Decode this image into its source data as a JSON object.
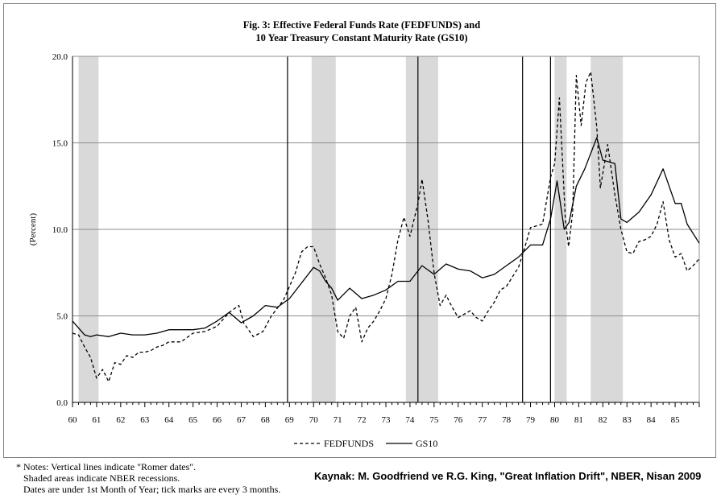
{
  "chart_data": {
    "type": "line",
    "title_line1": "Fig. 3: Effective Federal Funds Rate (FEDFUNDS) and",
    "title_line2": "10 Year Treasury Constant Maturity Rate (GS10)",
    "ylabel": "(Percent)",
    "xlabel": "",
    "ylim": [
      0,
      20
    ],
    "xlim": [
      1960,
      1986
    ],
    "y_ticks": [
      "0.0",
      "5.0",
      "10.0",
      "15.0",
      "20.0"
    ],
    "x_ticks": [
      "60",
      "61",
      "62",
      "63",
      "64",
      "65",
      "66",
      "67",
      "68",
      "69",
      "70",
      "71",
      "72",
      "73",
      "74",
      "75",
      "76",
      "77",
      "78",
      "79",
      "80",
      "81",
      "82",
      "83",
      "84",
      "85"
    ],
    "grid": "horizontal",
    "legend": "bottom-center",
    "recessions": [
      [
        1960.25,
        1961.08
      ],
      [
        1969.92,
        1970.92
      ],
      [
        1973.83,
        1975.17
      ],
      [
        1980.0,
        1980.5
      ],
      [
        1981.5,
        1982.83
      ]
    ],
    "romer_dates": [
      1968.92,
      1974.33,
      1978.67,
      1979.83
    ],
    "series": [
      {
        "name": "FEDFUNDS",
        "style": "dashed",
        "points": [
          [
            1960.0,
            4.0
          ],
          [
            1960.25,
            3.9
          ],
          [
            1960.5,
            3.2
          ],
          [
            1960.75,
            2.6
          ],
          [
            1961.0,
            1.4
          ],
          [
            1961.25,
            1.9
          ],
          [
            1961.5,
            1.2
          ],
          [
            1961.75,
            2.3
          ],
          [
            1962.0,
            2.2
          ],
          [
            1962.25,
            2.7
          ],
          [
            1962.5,
            2.6
          ],
          [
            1962.75,
            2.9
          ],
          [
            1963.0,
            2.9
          ],
          [
            1963.25,
            3.0
          ],
          [
            1963.5,
            3.2
          ],
          [
            1963.75,
            3.3
          ],
          [
            1964.0,
            3.5
          ],
          [
            1964.5,
            3.5
          ],
          [
            1965.0,
            4.0
          ],
          [
            1965.5,
            4.1
          ],
          [
            1966.0,
            4.4
          ],
          [
            1966.5,
            5.2
          ],
          [
            1966.9,
            5.6
          ],
          [
            1967.1,
            4.6
          ],
          [
            1967.5,
            3.8
          ],
          [
            1967.9,
            4.1
          ],
          [
            1968.25,
            5.0
          ],
          [
            1968.75,
            5.9
          ],
          [
            1969.25,
            7.5
          ],
          [
            1969.5,
            8.7
          ],
          [
            1969.75,
            9.0
          ],
          [
            1970.0,
            9.0
          ],
          [
            1970.25,
            8.0
          ],
          [
            1970.5,
            7.2
          ],
          [
            1970.75,
            6.2
          ],
          [
            1971.0,
            4.1
          ],
          [
            1971.25,
            3.7
          ],
          [
            1971.5,
            5.0
          ],
          [
            1971.75,
            5.5
          ],
          [
            1972.0,
            3.5
          ],
          [
            1972.25,
            4.3
          ],
          [
            1972.5,
            4.7
          ],
          [
            1972.75,
            5.3
          ],
          [
            1973.0,
            6.0
          ],
          [
            1973.25,
            7.4
          ],
          [
            1973.5,
            9.4
          ],
          [
            1973.75,
            10.7
          ],
          [
            1974.0,
            9.6
          ],
          [
            1974.33,
            11.5
          ],
          [
            1974.5,
            12.9
          ],
          [
            1974.75,
            10.5
          ],
          [
            1975.0,
            7.5
          ],
          [
            1975.25,
            5.6
          ],
          [
            1975.5,
            6.2
          ],
          [
            1975.75,
            5.5
          ],
          [
            1976.0,
            4.9
          ],
          [
            1976.5,
            5.3
          ],
          [
            1976.75,
            4.9
          ],
          [
            1977.0,
            4.7
          ],
          [
            1977.25,
            5.3
          ],
          [
            1977.5,
            5.8
          ],
          [
            1977.75,
            6.5
          ],
          [
            1978.0,
            6.7
          ],
          [
            1978.5,
            7.8
          ],
          [
            1978.75,
            8.9
          ],
          [
            1979.0,
            10.1
          ],
          [
            1979.5,
            10.3
          ],
          [
            1979.83,
            13.0
          ],
          [
            1980.0,
            13.8
          ],
          [
            1980.2,
            17.6
          ],
          [
            1980.45,
            10.5
          ],
          [
            1980.58,
            9.0
          ],
          [
            1980.75,
            11.0
          ],
          [
            1980.9,
            18.9
          ],
          [
            1981.1,
            16.0
          ],
          [
            1981.3,
            18.5
          ],
          [
            1981.5,
            19.1
          ],
          [
            1981.75,
            15.9
          ],
          [
            1981.9,
            12.4
          ],
          [
            1982.2,
            14.9
          ],
          [
            1982.5,
            12.0
          ],
          [
            1982.75,
            10.0
          ],
          [
            1983.0,
            8.7
          ],
          [
            1983.25,
            8.6
          ],
          [
            1983.5,
            9.3
          ],
          [
            1983.75,
            9.4
          ],
          [
            1984.0,
            9.6
          ],
          [
            1984.25,
            10.3
          ],
          [
            1984.5,
            11.6
          ],
          [
            1984.75,
            9.4
          ],
          [
            1985.0,
            8.4
          ],
          [
            1985.25,
            8.6
          ],
          [
            1985.5,
            7.6
          ],
          [
            1985.75,
            7.9
          ],
          [
            1986.0,
            8.3
          ]
        ]
      },
      {
        "name": "GS10",
        "style": "solid",
        "points": [
          [
            1960.0,
            4.7
          ],
          [
            1960.25,
            4.3
          ],
          [
            1960.5,
            3.9
          ],
          [
            1960.75,
            3.8
          ],
          [
            1961.0,
            3.9
          ],
          [
            1961.5,
            3.8
          ],
          [
            1962.0,
            4.0
          ],
          [
            1962.5,
            3.9
          ],
          [
            1963.0,
            3.9
          ],
          [
            1963.5,
            4.0
          ],
          [
            1964.0,
            4.2
          ],
          [
            1964.5,
            4.2
          ],
          [
            1965.0,
            4.2
          ],
          [
            1965.5,
            4.3
          ],
          [
            1966.0,
            4.7
          ],
          [
            1966.5,
            5.2
          ],
          [
            1967.0,
            4.6
          ],
          [
            1967.5,
            5.0
          ],
          [
            1968.0,
            5.6
          ],
          [
            1968.5,
            5.5
          ],
          [
            1969.0,
            6.0
          ],
          [
            1969.5,
            6.9
          ],
          [
            1970.0,
            7.8
          ],
          [
            1970.25,
            7.6
          ],
          [
            1970.5,
            7.0
          ],
          [
            1970.75,
            6.6
          ],
          [
            1971.0,
            5.9
          ],
          [
            1971.5,
            6.6
          ],
          [
            1972.0,
            6.0
          ],
          [
            1972.5,
            6.2
          ],
          [
            1973.0,
            6.5
          ],
          [
            1973.5,
            7.0
          ],
          [
            1974.0,
            7.0
          ],
          [
            1974.5,
            7.9
          ],
          [
            1975.0,
            7.4
          ],
          [
            1975.5,
            8.0
          ],
          [
            1976.0,
            7.7
          ],
          [
            1976.5,
            7.6
          ],
          [
            1977.0,
            7.2
          ],
          [
            1977.5,
            7.4
          ],
          [
            1978.0,
            7.9
          ],
          [
            1978.5,
            8.4
          ],
          [
            1979.0,
            9.1
          ],
          [
            1979.5,
            9.1
          ],
          [
            1979.83,
            10.6
          ],
          [
            1980.1,
            12.8
          ],
          [
            1980.4,
            10.0
          ],
          [
            1980.6,
            10.4
          ],
          [
            1980.9,
            12.5
          ],
          [
            1981.25,
            13.5
          ],
          [
            1981.75,
            15.3
          ],
          [
            1982.0,
            14.0
          ],
          [
            1982.5,
            13.8
          ],
          [
            1982.75,
            10.6
          ],
          [
            1983.0,
            10.4
          ],
          [
            1983.5,
            11.0
          ],
          [
            1984.0,
            12.0
          ],
          [
            1984.5,
            13.5
          ],
          [
            1984.75,
            12.5
          ],
          [
            1985.0,
            11.5
          ],
          [
            1985.25,
            11.5
          ],
          [
            1985.5,
            10.3
          ],
          [
            1986.0,
            9.2
          ]
        ]
      }
    ]
  },
  "legend": {
    "fedfunds_label": "FEDFUNDS",
    "gs10_label": "GS10"
  },
  "notes": {
    "line1": "* Notes: Vertical lines indicate \"Romer dates\".",
    "line2": "   Shaded areas indicate NBER recessions.",
    "line3": "   Dates are under 1st Month of Year; tick marks are every 3 months."
  },
  "source": "Kaynak: M. Goodfriend ve R.G. King, \"Great Inflation Drift\", NBER, Nisan 2009"
}
